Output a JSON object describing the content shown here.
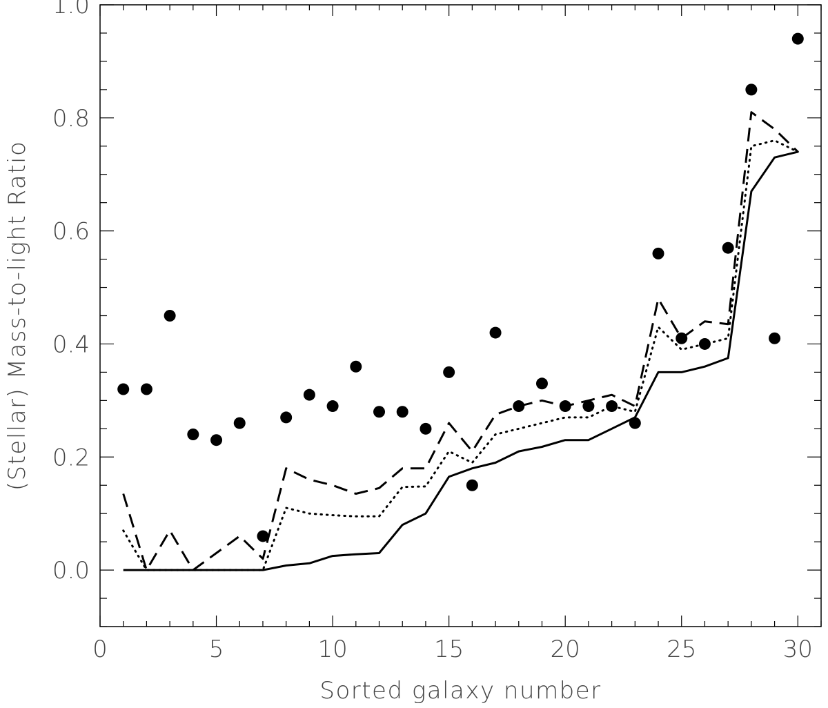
{
  "chart_data": {
    "type": "scatter",
    "title": "",
    "xlabel": "Sorted galaxy number",
    "ylabel": "(Stellar) Mass-to-light Ratio",
    "xlim": [
      0,
      31
    ],
    "ylim": [
      -0.1,
      1.0
    ],
    "x_ticks": [
      0,
      5,
      10,
      15,
      20,
      25,
      30
    ],
    "x_tick_labels": [
      "0",
      "5",
      "10",
      "15",
      "20",
      "25",
      "30"
    ],
    "y_ticks": [
      0.0,
      0.2,
      0.4,
      0.6,
      0.8,
      1.0
    ],
    "y_tick_labels": [
      "0.0",
      "0.2",
      "0.4",
      "0.6",
      "0.8",
      "1.0"
    ],
    "x_minor_step": 1,
    "y_minor_step": 0.05,
    "grid": false,
    "legend": "none",
    "series": [
      {
        "style": "points",
        "x": [
          1,
          2,
          3,
          4,
          5,
          6,
          7,
          8,
          9,
          10,
          11,
          12,
          13,
          14,
          15,
          16,
          17,
          18,
          19,
          20,
          21,
          22,
          23,
          24,
          25,
          26,
          27,
          28,
          29,
          30
        ],
        "y": [
          0.32,
          0.32,
          0.45,
          0.24,
          0.23,
          0.26,
          0.06,
          0.27,
          0.31,
          0.29,
          0.36,
          0.28,
          0.28,
          0.25,
          0.35,
          0.15,
          0.42,
          0.29,
          0.33,
          0.29,
          0.29,
          0.29,
          0.26,
          0.56,
          0.41,
          0.4,
          0.57,
          0.85,
          0.41,
          0.94
        ]
      },
      {
        "style": "solid",
        "x": [
          1,
          2,
          3,
          4,
          5,
          6,
          7,
          8,
          9,
          10,
          11,
          12,
          13,
          14,
          15,
          16,
          17,
          18,
          19,
          20,
          21,
          22,
          23,
          24,
          25,
          26,
          27,
          28,
          29,
          30
        ],
        "y": [
          0.0,
          0.0,
          0.0,
          0.0,
          0.0,
          0.0,
          0.0,
          0.008,
          0.012,
          0.025,
          0.028,
          0.03,
          0.08,
          0.1,
          0.165,
          0.18,
          0.19,
          0.21,
          0.218,
          0.23,
          0.23,
          0.25,
          0.27,
          0.35,
          0.35,
          0.36,
          0.375,
          0.67,
          0.73,
          0.74
        ]
      },
      {
        "style": "dotted",
        "x": [
          1,
          2,
          3,
          4,
          5,
          6,
          7,
          8,
          9,
          10,
          11,
          12,
          13,
          14,
          15,
          16,
          17,
          18,
          19,
          20,
          21,
          22,
          23,
          24,
          25,
          26,
          27,
          28,
          29,
          30
        ],
        "y": [
          0.07,
          0.0,
          0.0,
          0.0,
          0.0,
          0.0,
          0.0,
          0.11,
          0.1,
          0.097,
          0.095,
          0.095,
          0.147,
          0.148,
          0.21,
          0.19,
          0.24,
          0.25,
          0.26,
          0.27,
          0.27,
          0.29,
          0.28,
          0.43,
          0.39,
          0.4,
          0.41,
          0.75,
          0.76,
          0.74
        ]
      },
      {
        "style": "dashed",
        "x": [
          1,
          2,
          3,
          4,
          5,
          6,
          7,
          8,
          9,
          10,
          11,
          12,
          13,
          14,
          15,
          16,
          17,
          18,
          19,
          20,
          21,
          22,
          23,
          24,
          25,
          26,
          27,
          28,
          29,
          30
        ],
        "y": [
          0.135,
          0.0,
          0.07,
          0.0,
          0.03,
          0.06,
          0.02,
          0.18,
          0.16,
          0.15,
          0.135,
          0.145,
          0.18,
          0.18,
          0.26,
          0.21,
          0.275,
          0.29,
          0.3,
          0.29,
          0.3,
          0.31,
          0.29,
          0.48,
          0.41,
          0.44,
          0.435,
          0.81,
          0.78,
          0.74
        ]
      }
    ]
  }
}
